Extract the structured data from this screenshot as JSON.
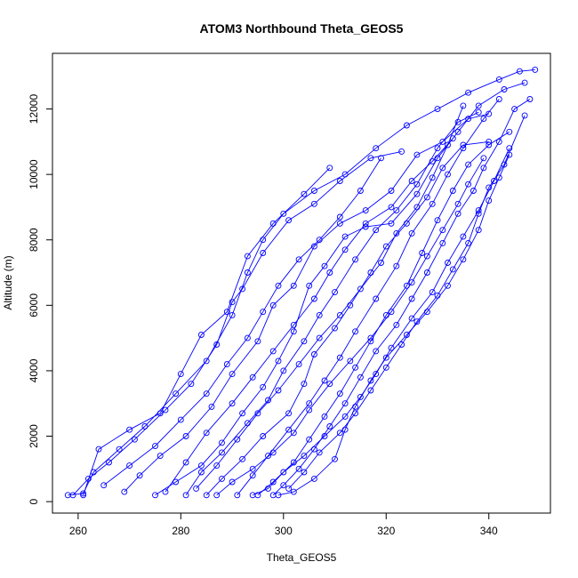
{
  "chart_data": {
    "type": "line",
    "title": "ATOM3 Northbound Theta_GEOS5",
    "xlabel": "Theta_GEOS5",
    "ylabel": "Altitude (m)",
    "xlim": [
      255,
      352
    ],
    "ylim": [
      -350,
      13700
    ],
    "xticks": [
      260,
      280,
      300,
      320,
      340
    ],
    "yticks": [
      0,
      2000,
      4000,
      6000,
      8000,
      10000,
      12000
    ],
    "color": "#0000ff",
    "marker": "open-circle",
    "grid": false,
    "legend": "none",
    "series": [
      {
        "points": [
          [
            258,
            200
          ],
          [
            261,
            250
          ],
          [
            263,
            900
          ],
          [
            268,
            1600
          ],
          [
            273,
            2300
          ],
          [
            279,
            3300
          ],
          [
            285,
            4300
          ],
          [
            290,
            5700
          ],
          [
            293,
            7000
          ],
          [
            296,
            8000
          ],
          [
            300,
            8800
          ],
          [
            306,
            9500
          ],
          [
            312,
            10000
          ],
          [
            318,
            10800
          ],
          [
            324,
            11500
          ],
          [
            330,
            12000
          ],
          [
            336,
            12500
          ],
          [
            342,
            12900
          ],
          [
            346,
            13150
          ],
          [
            349,
            13200
          ]
        ]
      },
      {
        "points": [
          [
            259,
            200
          ],
          [
            262,
            700
          ],
          [
            266,
            1200
          ],
          [
            271,
            1900
          ],
          [
            277,
            2800
          ],
          [
            282,
            3600
          ],
          [
            287,
            4800
          ],
          [
            290,
            6100
          ],
          [
            292,
            6500
          ],
          [
            296,
            7600
          ],
          [
            301,
            8600
          ],
          [
            306,
            9100
          ],
          [
            311,
            9800
          ],
          [
            317,
            10500
          ],
          [
            323,
            10700
          ]
        ]
      },
      {
        "points": [
          [
            261,
            200
          ],
          [
            264,
            1600
          ],
          [
            270,
            2200
          ],
          [
            276,
            2700
          ],
          [
            280,
            3900
          ],
          [
            284,
            5100
          ],
          [
            289,
            5800
          ],
          [
            293,
            7500
          ],
          [
            298,
            8500
          ],
          [
            304,
            9400
          ],
          [
            309,
            10200
          ]
        ]
      },
      {
        "points": [
          [
            269,
            300
          ],
          [
            272,
            800
          ],
          [
            276,
            1400
          ],
          [
            281,
            2000
          ],
          [
            286,
            2900
          ],
          [
            290,
            3900
          ],
          [
            295,
            4900
          ],
          [
            298,
            6000
          ],
          [
            302,
            6600
          ],
          [
            306,
            7800
          ],
          [
            311,
            8500
          ],
          [
            316,
            8900
          ],
          [
            321,
            9500
          ],
          [
            326,
            10600
          ],
          [
            331,
            11000
          ],
          [
            336,
            11700
          ],
          [
            340,
            11850
          ]
        ]
      },
      {
        "points": [
          [
            275,
            200
          ],
          [
            279,
            600
          ],
          [
            284,
            1100
          ],
          [
            288,
            1800
          ],
          [
            292,
            2700
          ],
          [
            296,
            3500
          ],
          [
            299,
            4300
          ],
          [
            302,
            5200
          ],
          [
            305,
            6600
          ],
          [
            308,
            7200
          ],
          [
            312,
            8100
          ],
          [
            316,
            8400
          ],
          [
            321,
            8500
          ],
          [
            326,
            9400
          ],
          [
            330,
            10500
          ],
          [
            334,
            11300
          ],
          [
            338,
            12100
          ],
          [
            343,
            12600
          ],
          [
            347,
            12800
          ]
        ]
      },
      {
        "points": [
          [
            281,
            200
          ],
          [
            284,
            900
          ],
          [
            288,
            1500
          ],
          [
            293,
            2400
          ],
          [
            297,
            3100
          ],
          [
            300,
            4000
          ],
          [
            304,
            4900
          ],
          [
            307,
            5700
          ],
          [
            310,
            6400
          ],
          [
            314,
            7400
          ],
          [
            318,
            8300
          ],
          [
            322,
            8900
          ],
          [
            326,
            9700
          ],
          [
            330,
            10800
          ],
          [
            334,
            11600
          ],
          [
            338,
            11900
          ]
        ]
      },
      {
        "points": [
          [
            285,
            200
          ],
          [
            288,
            700
          ],
          [
            292,
            1300
          ],
          [
            296,
            2000
          ],
          [
            301,
            2700
          ],
          [
            304,
            3600
          ],
          [
            306,
            4500
          ],
          [
            310,
            5300
          ],
          [
            313,
            6000
          ],
          [
            317,
            7000
          ],
          [
            320,
            7800
          ],
          [
            324,
            8500
          ],
          [
            328,
            9300
          ],
          [
            331,
            10200
          ],
          [
            335,
            10900
          ],
          [
            340,
            11000
          ]
        ]
      },
      {
        "points": [
          [
            291,
            200
          ],
          [
            294,
            800
          ],
          [
            297,
            1400
          ],
          [
            301,
            2200
          ],
          [
            305,
            3000
          ],
          [
            308,
            3700
          ],
          [
            311,
            4400
          ],
          [
            314,
            5200
          ],
          [
            318,
            6200
          ],
          [
            322,
            7200
          ],
          [
            325,
            8200
          ],
          [
            329,
            9100
          ],
          [
            332,
            10000
          ],
          [
            335,
            10800
          ],
          [
            339,
            11700
          ],
          [
            342,
            12300
          ]
        ]
      },
      {
        "points": [
          [
            295,
            200
          ],
          [
            298,
            600
          ],
          [
            302,
            1200
          ],
          [
            305,
            1900
          ],
          [
            308,
            2600
          ],
          [
            311,
            3300
          ],
          [
            314,
            4100
          ],
          [
            317,
            4900
          ],
          [
            320,
            5700
          ],
          [
            324,
            6600
          ],
          [
            327,
            7600
          ],
          [
            330,
            8600
          ],
          [
            333,
            9500
          ],
          [
            336,
            10300
          ],
          [
            340,
            10900
          ],
          [
            344,
            11300
          ]
        ]
      },
      {
        "points": [
          [
            298,
            200
          ],
          [
            300,
            500
          ],
          [
            303,
            1000
          ],
          [
            306,
            1600
          ],
          [
            309,
            2300
          ],
          [
            312,
            3000
          ],
          [
            315,
            3800
          ],
          [
            318,
            4600
          ],
          [
            322,
            5400
          ],
          [
            325,
            6200
          ],
          [
            328,
            7000
          ],
          [
            331,
            7900
          ],
          [
            334,
            8800
          ],
          [
            337,
            9500
          ],
          [
            339,
            10200
          ],
          [
            342,
            11000
          ],
          [
            345,
            12000
          ],
          [
            348,
            12300
          ]
        ]
      },
      {
        "points": [
          [
            299,
            200
          ],
          [
            302,
            300
          ],
          [
            306,
            700
          ],
          [
            310,
            1300
          ],
          [
            312,
            2200
          ],
          [
            314,
            2900
          ],
          [
            317,
            3700
          ],
          [
            320,
            4400
          ],
          [
            324,
            5100
          ],
          [
            328,
            5800
          ],
          [
            332,
            6600
          ],
          [
            335,
            7400
          ],
          [
            338,
            8300
          ],
          [
            340,
            9200
          ],
          [
            342,
            9900
          ],
          [
            344,
            10600
          ]
        ]
      },
      {
        "points": [
          [
            287,
            200
          ],
          [
            290,
            600
          ],
          [
            294,
            1000
          ],
          [
            298,
            1500
          ],
          [
            302,
            2100
          ],
          [
            305,
            2800
          ],
          [
            309,
            3600
          ],
          [
            313,
            4300
          ],
          [
            317,
            5000
          ],
          [
            321,
            5800
          ],
          [
            325,
            6700
          ],
          [
            328,
            7500
          ],
          [
            331,
            8300
          ],
          [
            334,
            9100
          ],
          [
            336,
            9700
          ],
          [
            339,
            10500
          ]
        ]
      },
      {
        "points": [
          [
            277,
            300
          ],
          [
            281,
            1200
          ],
          [
            285,
            2100
          ],
          [
            290,
            3000
          ],
          [
            294,
            3800
          ],
          [
            298,
            4600
          ],
          [
            302,
            5400
          ],
          [
            306,
            6200
          ],
          [
            309,
            7000
          ],
          [
            312,
            7700
          ],
          [
            316,
            8500
          ],
          [
            321,
            9000
          ],
          [
            325,
            9800
          ],
          [
            329,
            10400
          ],
          [
            333,
            11100
          ]
        ]
      },
      {
        "points": [
          [
            265,
            500
          ],
          [
            270,
            1100
          ],
          [
            275,
            1700
          ],
          [
            280,
            2500
          ],
          [
            285,
            3300
          ],
          [
            289,
            4200
          ],
          [
            293,
            5000
          ],
          [
            296,
            5800
          ],
          [
            299,
            6600
          ],
          [
            303,
            7400
          ],
          [
            307,
            8000
          ],
          [
            311,
            8700
          ],
          [
            315,
            9500
          ],
          [
            319,
            10500
          ]
        ]
      },
      {
        "points": [
          [
            283,
            400
          ],
          [
            287,
            1100
          ],
          [
            291,
            1900
          ],
          [
            295,
            2700
          ],
          [
            299,
            3400
          ],
          [
            303,
            4200
          ],
          [
            307,
            5000
          ],
          [
            311,
            5700
          ],
          [
            315,
            6500
          ],
          [
            319,
            7300
          ],
          [
            322,
            8200
          ],
          [
            326,
            9000
          ],
          [
            329,
            9900
          ],
          [
            332,
            10900
          ],
          [
            335,
            12100
          ]
        ]
      },
      {
        "points": [
          [
            301,
            400
          ],
          [
            304,
            900
          ],
          [
            307,
            1500
          ],
          [
            311,
            2100
          ],
          [
            314,
            2700
          ],
          [
            317,
            3400
          ],
          [
            320,
            4100
          ],
          [
            323,
            4800
          ],
          [
            326,
            5500
          ],
          [
            330,
            6300
          ],
          [
            333,
            7100
          ],
          [
            336,
            7900
          ],
          [
            338,
            8800
          ],
          [
            340,
            9600
          ],
          [
            343,
            10300
          ],
          [
            347,
            11800
          ]
        ]
      },
      {
        "points": [
          [
            294,
            200
          ],
          [
            297,
            400
          ],
          [
            300,
            900
          ],
          [
            304,
            1400
          ],
          [
            308,
            2000
          ],
          [
            312,
            2600
          ],
          [
            315,
            3200
          ],
          [
            318,
            3900
          ],
          [
            321,
            4700
          ],
          [
            325,
            5600
          ],
          [
            329,
            6400
          ],
          [
            332,
            7300
          ],
          [
            335,
            8100
          ],
          [
            338,
            8900
          ],
          [
            341,
            9800
          ],
          [
            344,
            10800
          ]
        ]
      }
    ]
  }
}
